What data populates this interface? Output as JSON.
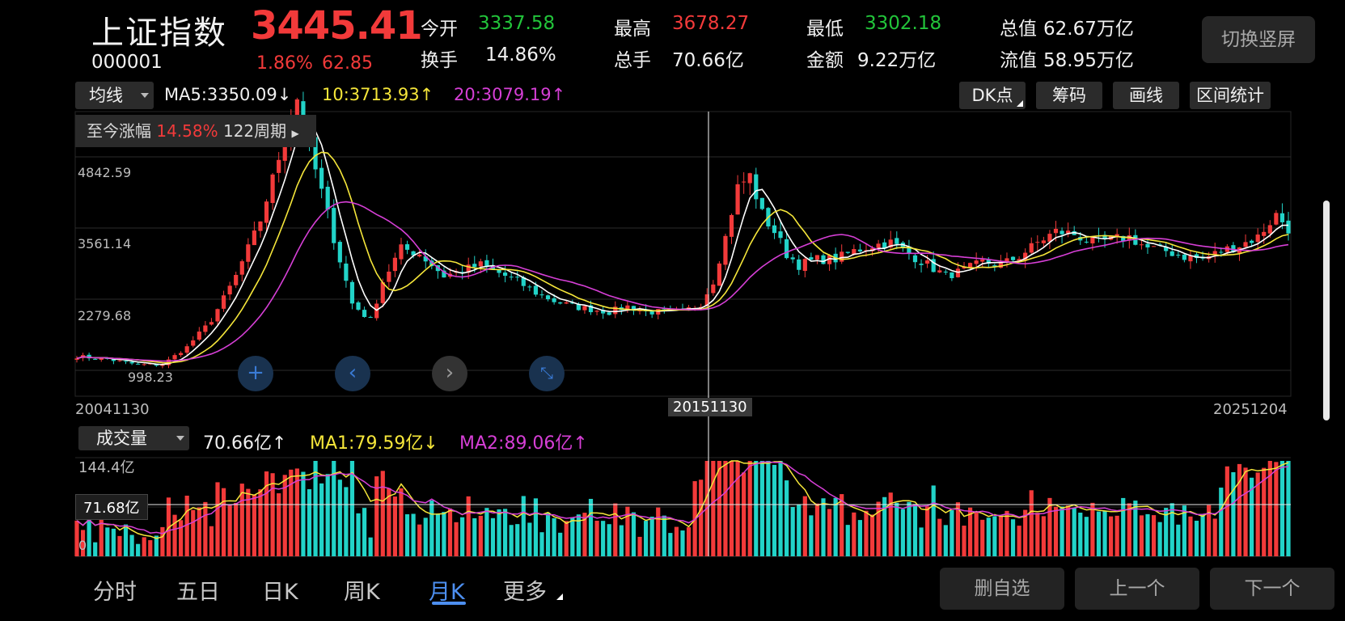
{
  "stock": {
    "name": "上证指数",
    "code": "000001",
    "price": "3445.41",
    "change_pct": "1.86%",
    "change_abs": "62.85"
  },
  "quote": {
    "open_label": "今开",
    "open": "3337.58",
    "high_label": "最高",
    "high": "3678.27",
    "low_label": "最低",
    "low": "3302.18",
    "total_value_label": "总值",
    "total_value": "62.67万亿",
    "turnover_label": "换手",
    "turnover": "14.86%",
    "total_volume_label": "总手",
    "total_volume": "70.66亿",
    "amount_label": "金额",
    "amount": "9.22万亿",
    "float_value_label": "流值",
    "float_value": "58.95万亿"
  },
  "switch_button": "切换竖屏",
  "indicator": {
    "selected": "均线",
    "ma5": "MA5:3350.09↓",
    "ma10": "10:3713.93↑",
    "ma20": "20:3079.19↑"
  },
  "tools": {
    "dk": "DK点",
    "chips": "筹码",
    "draw": "画线",
    "range_stats": "区间统计"
  },
  "tooltip": {
    "label": "至今涨幅",
    "value": "14.58%",
    "periods": "122周期"
  },
  "y_axis": [
    "4842.59",
    "3561.14",
    "2279.68",
    "998.23"
  ],
  "dates": {
    "start": "20041130",
    "crosshair": "20151130",
    "end": "20251204"
  },
  "volume": {
    "selected": "成交量",
    "value": "70.66亿↑",
    "ma1": "MA1:79.59亿↓",
    "ma2": "MA2:89.06亿↑",
    "max_label": "144.4亿",
    "zero_label": "0",
    "crosshair_value": "71.68亿"
  },
  "periods": [
    "分时",
    "五日",
    "日K",
    "周K",
    "月K",
    "更多"
  ],
  "active_period": "月K",
  "bottom_buttons": {
    "remove": "删自选",
    "prev": "上一个",
    "next": "下一个"
  },
  "nav_icons": [
    "zoom-in-icon",
    "scroll-left-icon",
    "scroll-right-icon",
    "shrink-icon"
  ],
  "colors": {
    "up": "#f23a3a",
    "down": "#22d3c8",
    "ma5": "#ffffff",
    "ma10": "#f5e63a",
    "ma20": "#d63fd6"
  },
  "chart_data": {
    "type": "candlestick",
    "x_range": [
      "20041130",
      "20251204"
    ],
    "crosshair_x": "20151130",
    "ylim": [
      998.23,
      6124
    ],
    "series": [
      {
        "name": "MA5",
        "type": "line"
      },
      {
        "name": "10",
        "type": "line"
      },
      {
        "name": "20",
        "type": "line"
      }
    ],
    "anchors": [
      [
        0,
        1250
      ],
      [
        5,
        1200
      ],
      [
        10,
        1100
      ],
      [
        14,
        1100
      ],
      [
        18,
        1420
      ],
      [
        22,
        1900
      ],
      [
        26,
        2700
      ],
      [
        30,
        3700
      ],
      [
        34,
        5200
      ],
      [
        36,
        5900
      ],
      [
        38,
        5000
      ],
      [
        40,
        4200
      ],
      [
        43,
        3000
      ],
      [
        45,
        2200
      ],
      [
        48,
        1900
      ],
      [
        50,
        2600
      ],
      [
        53,
        3200
      ],
      [
        56,
        3100
      ],
      [
        58,
        2900
      ],
      [
        60,
        2700
      ],
      [
        63,
        2800
      ],
      [
        66,
        2900
      ],
      [
        69,
        2750
      ],
      [
        72,
        2600
      ],
      [
        75,
        2400
      ],
      [
        78,
        2250
      ],
      [
        81,
        2150
      ],
      [
        84,
        2100
      ],
      [
        87,
        2050
      ],
      [
        90,
        2150
      ],
      [
        93,
        2050
      ],
      [
        96,
        2050
      ],
      [
        99,
        2050
      ],
      [
        102,
        2200
      ],
      [
        104,
        2600
      ],
      [
        106,
        3400
      ],
      [
        108,
        4300
      ],
      [
        110,
        4500
      ],
      [
        112,
        3800
      ],
      [
        114,
        3500
      ],
      [
        116,
        3100
      ],
      [
        118,
        2900
      ],
      [
        121,
        3000
      ],
      [
        124,
        3000
      ],
      [
        127,
        3150
      ],
      [
        130,
        3250
      ],
      [
        133,
        3300
      ],
      [
        136,
        3100
      ],
      [
        139,
        2900
      ],
      [
        142,
        2700
      ],
      [
        145,
        2800
      ],
      [
        148,
        2950
      ],
      [
        151,
        2900
      ],
      [
        154,
        3050
      ],
      [
        157,
        3300
      ],
      [
        160,
        3500
      ],
      [
        163,
        3450
      ],
      [
        166,
        3300
      ],
      [
        169,
        3350
      ],
      [
        172,
        3400
      ],
      [
        175,
        3200
      ],
      [
        178,
        3150
      ],
      [
        181,
        3050
      ],
      [
        184,
        3000
      ],
      [
        187,
        3150
      ],
      [
        190,
        3250
      ],
      [
        193,
        3400
      ],
      [
        196,
        3800
      ],
      [
        198,
        3560
      ]
    ]
  }
}
